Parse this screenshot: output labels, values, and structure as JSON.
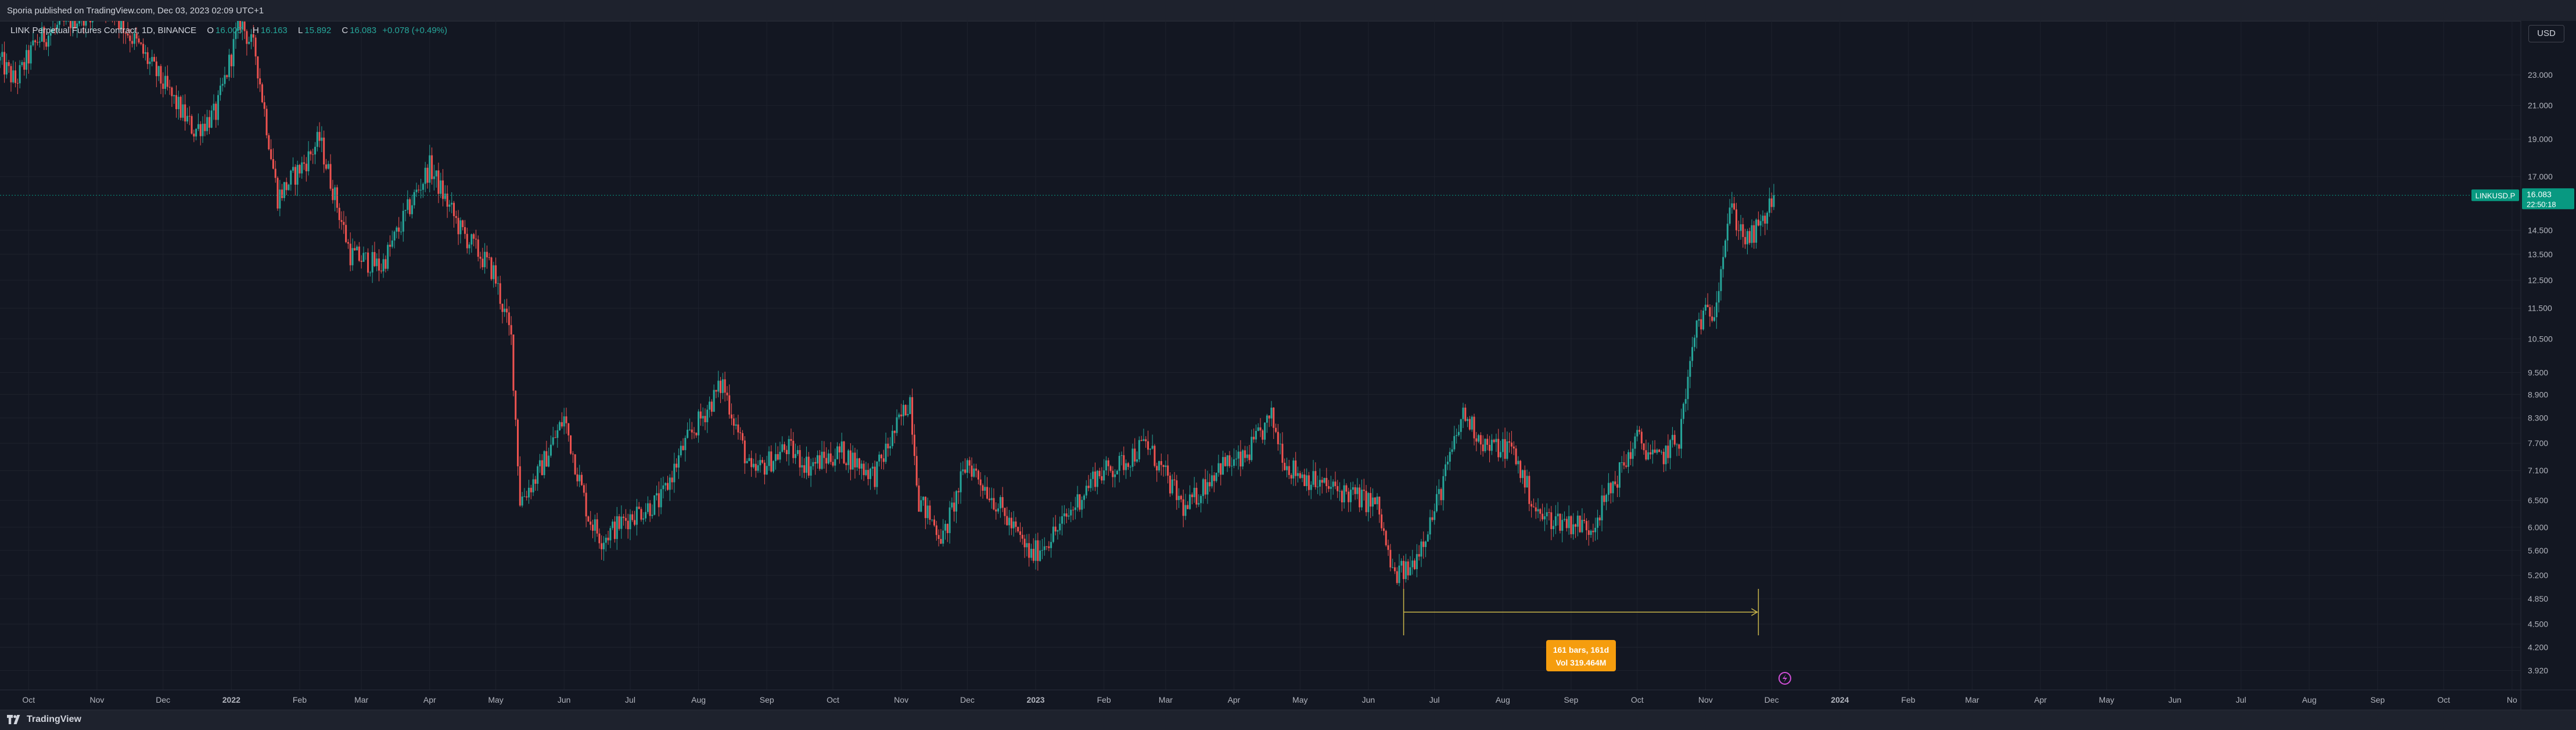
{
  "publisher_line": "Sporia published on TradingView.com, Dec 03, 2023 02:09 UTC+1",
  "legend": {
    "symbol_text": "LINK Perpetual Futures Contract, 1D, BINANCE",
    "open_label": "O",
    "open_value": "16.005",
    "high_label": "H",
    "high_value": "16.163",
    "low_label": "L",
    "low_value": "15.892",
    "close_label": "C",
    "close_value": "16.083",
    "change": "+0.078 (+0.49%)"
  },
  "currency": "USD",
  "brand": {
    "name": "TradingView"
  },
  "price_label": {
    "symbol": "LINKUSD.P",
    "price": "16.083",
    "countdown": "22:50:18"
  },
  "measure": {
    "line1": "161 bars, 161d",
    "line2": "Vol 319.464M"
  },
  "colors": {
    "background": "#131722",
    "up": "#26a69a",
    "down": "#ef5350",
    "measure": "#f59d0e",
    "measure_line": "#c9b64a",
    "price_tag": "#089981",
    "gridline": "#1e222d",
    "axis_text": "#b2b5be"
  },
  "chart_data": {
    "type": "candlestick",
    "scale": "log",
    "x_range": [
      "2021-09-18",
      "2024-11-05"
    ],
    "y_range": [
      3.7,
      27.0
    ],
    "y_ticks": [
      "23.000",
      "21.000",
      "19.000",
      "17.000",
      "14.500",
      "13.500",
      "12.500",
      "11.500",
      "10.500",
      "9.500",
      "8.900",
      "8.300",
      "7.700",
      "7.100",
      "6.500",
      "6.000",
      "5.600",
      "5.200",
      "4.850",
      "4.500",
      "4.200",
      "3.920"
    ],
    "x_ticks": [
      {
        "label": "Oct",
        "date": "2021-10-01",
        "bold": false
      },
      {
        "label": "Nov",
        "date": "2021-11-01",
        "bold": false
      },
      {
        "label": "Dec",
        "date": "2021-12-01",
        "bold": false
      },
      {
        "label": "2022",
        "date": "2022-01-01",
        "bold": true
      },
      {
        "label": "Feb",
        "date": "2022-02-01",
        "bold": false
      },
      {
        "label": "Mar",
        "date": "2022-03-01",
        "bold": false
      },
      {
        "label": "Apr",
        "date": "2022-04-01",
        "bold": false
      },
      {
        "label": "May",
        "date": "2022-05-01",
        "bold": false
      },
      {
        "label": "Jun",
        "date": "2022-06-01",
        "bold": false
      },
      {
        "label": "Jul",
        "date": "2022-07-01",
        "bold": false
      },
      {
        "label": "Aug",
        "date": "2022-08-01",
        "bold": false
      },
      {
        "label": "Sep",
        "date": "2022-09-01",
        "bold": false
      },
      {
        "label": "Oct",
        "date": "2022-10-01",
        "bold": false
      },
      {
        "label": "Nov",
        "date": "2022-11-01",
        "bold": false
      },
      {
        "label": "Dec",
        "date": "2022-12-01",
        "bold": false
      },
      {
        "label": "2023",
        "date": "2023-01-01",
        "bold": true
      },
      {
        "label": "Feb",
        "date": "2023-02-01",
        "bold": false
      },
      {
        "label": "Mar",
        "date": "2023-03-01",
        "bold": false
      },
      {
        "label": "Apr",
        "date": "2023-04-01",
        "bold": false
      },
      {
        "label": "May",
        "date": "2023-05-01",
        "bold": false
      },
      {
        "label": "Jun",
        "date": "2023-06-01",
        "bold": false
      },
      {
        "label": "Jul",
        "date": "2023-07-01",
        "bold": false
      },
      {
        "label": "Aug",
        "date": "2023-08-01",
        "bold": false
      },
      {
        "label": "Sep",
        "date": "2023-09-01",
        "bold": false
      },
      {
        "label": "Oct",
        "date": "2023-10-01",
        "bold": false
      },
      {
        "label": "Nov",
        "date": "2023-11-01",
        "bold": false
      },
      {
        "label": "Dec",
        "date": "2023-12-01",
        "bold": false
      },
      {
        "label": "2024",
        "date": "2024-01-01",
        "bold": true
      },
      {
        "label": "Feb",
        "date": "2024-02-01",
        "bold": false
      },
      {
        "label": "Mar",
        "date": "2024-03-01",
        "bold": false
      },
      {
        "label": "Apr",
        "date": "2024-04-01",
        "bold": false
      },
      {
        "label": "May",
        "date": "2024-05-01",
        "bold": false
      },
      {
        "label": "Jun",
        "date": "2024-06-01",
        "bold": false
      },
      {
        "label": "Jul",
        "date": "2024-07-01",
        "bold": false
      },
      {
        "label": "Aug",
        "date": "2024-08-01",
        "bold": false
      },
      {
        "label": "Sep",
        "date": "2024-09-01",
        "bold": false
      },
      {
        "label": "Oct",
        "date": "2024-10-01",
        "bold": false
      },
      {
        "label": "No",
        "date": "2024-11-01",
        "bold": false
      }
    ],
    "close_path": [
      {
        "date": "2021-09-18",
        "price": 24.0
      },
      {
        "date": "2021-09-25",
        "price": 22.5
      },
      {
        "date": "2021-10-05",
        "price": 25.5
      },
      {
        "date": "2021-10-20",
        "price": 27.0
      },
      {
        "date": "2021-11-05",
        "price": 28.5
      },
      {
        "date": "2021-11-20",
        "price": 25.0
      },
      {
        "date": "2021-12-05",
        "price": 21.5
      },
      {
        "date": "2021-12-15",
        "price": 19.5
      },
      {
        "date": "2021-12-25",
        "price": 20.5
      },
      {
        "date": "2022-01-05",
        "price": 27.0
      },
      {
        "date": "2022-01-12",
        "price": 24.5
      },
      {
        "date": "2022-01-22",
        "price": 16.0
      },
      {
        "date": "2022-02-05",
        "price": 18.0
      },
      {
        "date": "2022-02-10",
        "price": 19.0
      },
      {
        "date": "2022-02-24",
        "price": 13.5
      },
      {
        "date": "2022-03-10",
        "price": 13.0
      },
      {
        "date": "2022-03-25",
        "price": 16.0
      },
      {
        "date": "2022-04-01",
        "price": 17.5
      },
      {
        "date": "2022-04-15",
        "price": 14.5
      },
      {
        "date": "2022-04-30",
        "price": 12.8
      },
      {
        "date": "2022-05-08",
        "price": 10.5
      },
      {
        "date": "2022-05-12",
        "price": 6.5
      },
      {
        "date": "2022-05-20",
        "price": 7.0
      },
      {
        "date": "2022-06-01",
        "price": 8.3
      },
      {
        "date": "2022-06-12",
        "price": 6.2
      },
      {
        "date": "2022-06-18",
        "price": 5.8
      },
      {
        "date": "2022-07-01",
        "price": 6.2
      },
      {
        "date": "2022-07-15",
        "price": 6.5
      },
      {
        "date": "2022-07-25",
        "price": 7.6
      },
      {
        "date": "2022-08-12",
        "price": 9.2
      },
      {
        "date": "2022-08-25",
        "price": 7.0
      },
      {
        "date": "2022-09-10",
        "price": 7.6
      },
      {
        "date": "2022-09-20",
        "price": 7.2
      },
      {
        "date": "2022-10-05",
        "price": 7.5
      },
      {
        "date": "2022-10-20",
        "price": 7.0
      },
      {
        "date": "2022-11-05",
        "price": 8.8
      },
      {
        "date": "2022-11-09",
        "price": 6.5
      },
      {
        "date": "2022-11-20",
        "price": 5.8
      },
      {
        "date": "2022-12-01",
        "price": 7.3
      },
      {
        "date": "2022-12-15",
        "price": 6.4
      },
      {
        "date": "2022-12-30",
        "price": 5.5
      },
      {
        "date": "2023-01-12",
        "price": 6.0
      },
      {
        "date": "2023-01-28",
        "price": 7.0
      },
      {
        "date": "2023-02-08",
        "price": 7.2
      },
      {
        "date": "2023-02-20",
        "price": 7.7
      },
      {
        "date": "2023-03-10",
        "price": 6.3
      },
      {
        "date": "2023-03-25",
        "price": 7.2
      },
      {
        "date": "2023-04-05",
        "price": 7.3
      },
      {
        "date": "2023-04-18",
        "price": 8.3
      },
      {
        "date": "2023-04-25",
        "price": 7.2
      },
      {
        "date": "2023-05-10",
        "price": 6.8
      },
      {
        "date": "2023-05-25",
        "price": 6.6
      },
      {
        "date": "2023-06-05",
        "price": 6.4
      },
      {
        "date": "2023-06-12",
        "price": 5.2
      },
      {
        "date": "2023-06-20",
        "price": 5.3
      },
      {
        "date": "2023-07-01",
        "price": 6.3
      },
      {
        "date": "2023-07-14",
        "price": 8.4
      },
      {
        "date": "2023-07-25",
        "price": 7.6
      },
      {
        "date": "2023-08-05",
        "price": 7.6
      },
      {
        "date": "2023-08-17",
        "price": 6.2
      },
      {
        "date": "2023-08-30",
        "price": 6.1
      },
      {
        "date": "2023-09-10",
        "price": 6.0
      },
      {
        "date": "2023-09-20",
        "price": 6.8
      },
      {
        "date": "2023-10-01",
        "price": 7.8
      },
      {
        "date": "2023-10-10",
        "price": 7.3
      },
      {
        "date": "2023-10-20",
        "price": 7.8
      },
      {
        "date": "2023-10-28",
        "price": 11.0
      },
      {
        "date": "2023-11-05",
        "price": 11.5
      },
      {
        "date": "2023-11-12",
        "price": 15.5
      },
      {
        "date": "2023-11-20",
        "price": 14.0
      },
      {
        "date": "2023-11-27",
        "price": 14.8
      },
      {
        "date": "2023-12-02",
        "price": 16.083
      }
    ],
    "measure_range": {
      "start": "2023-06-17",
      "end": "2023-11-25"
    }
  }
}
